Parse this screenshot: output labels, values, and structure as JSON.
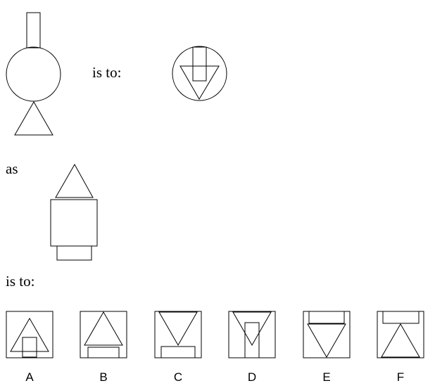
{
  "text": {
    "is_to_1": "is to:",
    "as": "as",
    "is_to_2": "is to:"
  },
  "options": [
    {
      "letter": "A"
    },
    {
      "letter": "B"
    },
    {
      "letter": "C"
    },
    {
      "letter": "D"
    },
    {
      "letter": "E"
    },
    {
      "letter": "F"
    }
  ]
}
